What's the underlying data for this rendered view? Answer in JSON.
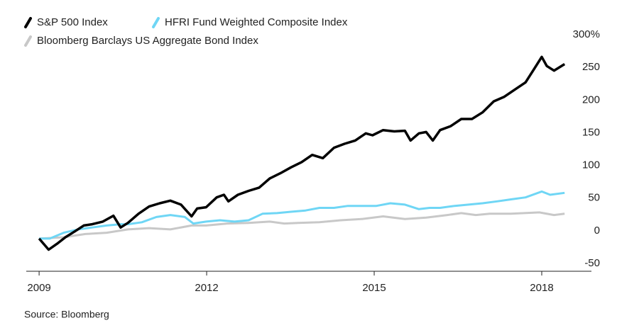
{
  "chart_data": {
    "type": "line",
    "source": "Source: Bloomberg",
    "xlim": [
      2008.77,
      2018.89
    ],
    "xticks": [
      2009,
      2012,
      2015,
      2018
    ],
    "ylim": [
      -50,
      300
    ],
    "yticks": [
      -50,
      0,
      50,
      100,
      150,
      200,
      250,
      {
        "value": 300,
        "label": "300%"
      }
    ],
    "grid": false,
    "legend": "top-left",
    "series": [
      {
        "name": "S&P 500 Index",
        "color": "#000000",
        "x": [
          2009.0,
          2009.17,
          2009.32,
          2009.47,
          2009.64,
          2009.8,
          2009.95,
          2010.14,
          2010.33,
          2010.46,
          2010.59,
          2010.78,
          2010.97,
          2011.16,
          2011.35,
          2011.54,
          2011.73,
          2011.83,
          2011.99,
          2012.18,
          2012.31,
          2012.39,
          2012.56,
          2012.75,
          2012.94,
          2013.13,
          2013.32,
          2013.51,
          2013.7,
          2013.89,
          2014.08,
          2014.28,
          2014.47,
          2014.66,
          2014.85,
          2014.97,
          2015.16,
          2015.36,
          2015.55,
          2015.65,
          2015.8,
          2015.93,
          2016.05,
          2016.18,
          2016.37,
          2016.56,
          2016.75,
          2016.94,
          2017.14,
          2017.33,
          2017.52,
          2017.71,
          2017.86,
          2018.0,
          2018.09,
          2018.22,
          2018.41
        ],
        "values": [
          0,
          -17,
          -8,
          2,
          11,
          20,
          22,
          26,
          35,
          17,
          24,
          38,
          49,
          54,
          58,
          52,
          34,
          46,
          48,
          63,
          67,
          57,
          67,
          73,
          78,
          92,
          100,
          109,
          117,
          128,
          123,
          139,
          145,
          150,
          161,
          158,
          166,
          164,
          165,
          150,
          161,
          163,
          150,
          166,
          172,
          183,
          183,
          193,
          210,
          217,
          228,
          239,
          259,
          278,
          264,
          257,
          267
        ]
      },
      {
        "name": "HFRI Fund Weighted Composite Index",
        "color": "#6fd6f5",
        "x": [
          2009.0,
          2009.19,
          2009.44,
          2009.7,
          2009.95,
          2010.21,
          2010.46,
          2010.59,
          2010.84,
          2011.1,
          2011.35,
          2011.61,
          2011.76,
          2011.99,
          2012.24,
          2012.5,
          2012.75,
          2013.0,
          2013.26,
          2013.51,
          2013.77,
          2014.02,
          2014.28,
          2014.53,
          2014.78,
          2015.04,
          2015.29,
          2015.55,
          2015.8,
          2015.99,
          2016.18,
          2016.44,
          2016.69,
          2016.94,
          2017.2,
          2017.45,
          2017.71,
          2018.0,
          2018.15,
          2018.41
        ],
        "values": [
          0,
          0,
          9,
          14,
          17,
          20,
          22,
          22,
          25,
          33,
          36,
          33,
          23,
          26,
          28,
          26,
          28,
          38,
          39,
          41,
          43,
          47,
          47,
          50,
          50,
          50,
          54,
          52,
          45,
          47,
          47,
          50,
          52,
          54,
          57,
          60,
          63,
          72,
          67,
          70
        ]
      },
      {
        "name": "Bloomberg Barclays US Aggregate Bond Index",
        "color": "#c8c8c8",
        "x": [
          2009.0,
          2009.44,
          2009.83,
          2010.21,
          2010.59,
          2010.97,
          2011.35,
          2011.73,
          2011.99,
          2012.37,
          2012.75,
          2013.13,
          2013.39,
          2013.64,
          2014.02,
          2014.4,
          2014.78,
          2015.16,
          2015.55,
          2015.93,
          2016.31,
          2016.56,
          2016.82,
          2017.07,
          2017.45,
          2017.96,
          2018.22,
          2018.41
        ],
        "values": [
          0,
          2,
          7,
          9,
          14,
          16,
          14,
          20,
          20,
          23,
          24,
          26,
          23,
          24,
          25,
          28,
          30,
          34,
          30,
          32,
          36,
          39,
          36,
          38,
          38,
          40,
          36,
          38
        ]
      }
    ]
  }
}
